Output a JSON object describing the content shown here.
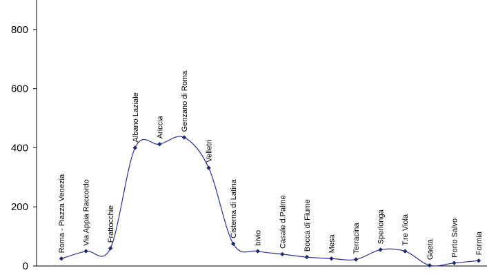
{
  "chart_data": {
    "type": "line",
    "title": "",
    "xlabel": "",
    "ylabel": "",
    "ylim": [
      0,
      900
    ],
    "y_ticks": [
      0,
      200,
      400,
      600,
      800
    ],
    "grid": false,
    "legend": "none",
    "smooth": true,
    "line_color": "#2b2b9b",
    "marker_color": "#1f2a6b",
    "categories": [
      "Roma - Piazza Venezia",
      "Via Appia Raccordo",
      "Frattocchie",
      "Albano Laziale",
      "Ariccia",
      "Genzano di Roma",
      "Velletri",
      "Cisterna di Latina",
      "bivio",
      "Casale d.Palme",
      "Bocca di Fiume",
      "Mesa",
      "Terracina",
      "Sperlonga",
      "T.re Viola",
      "Gaeta",
      "Porto Salvo",
      "Formia"
    ],
    "values": [
      25,
      50,
      60,
      400,
      412,
      435,
      332,
      75,
      50,
      40,
      30,
      25,
      22,
      55,
      50,
      2,
      10,
      18
    ]
  }
}
